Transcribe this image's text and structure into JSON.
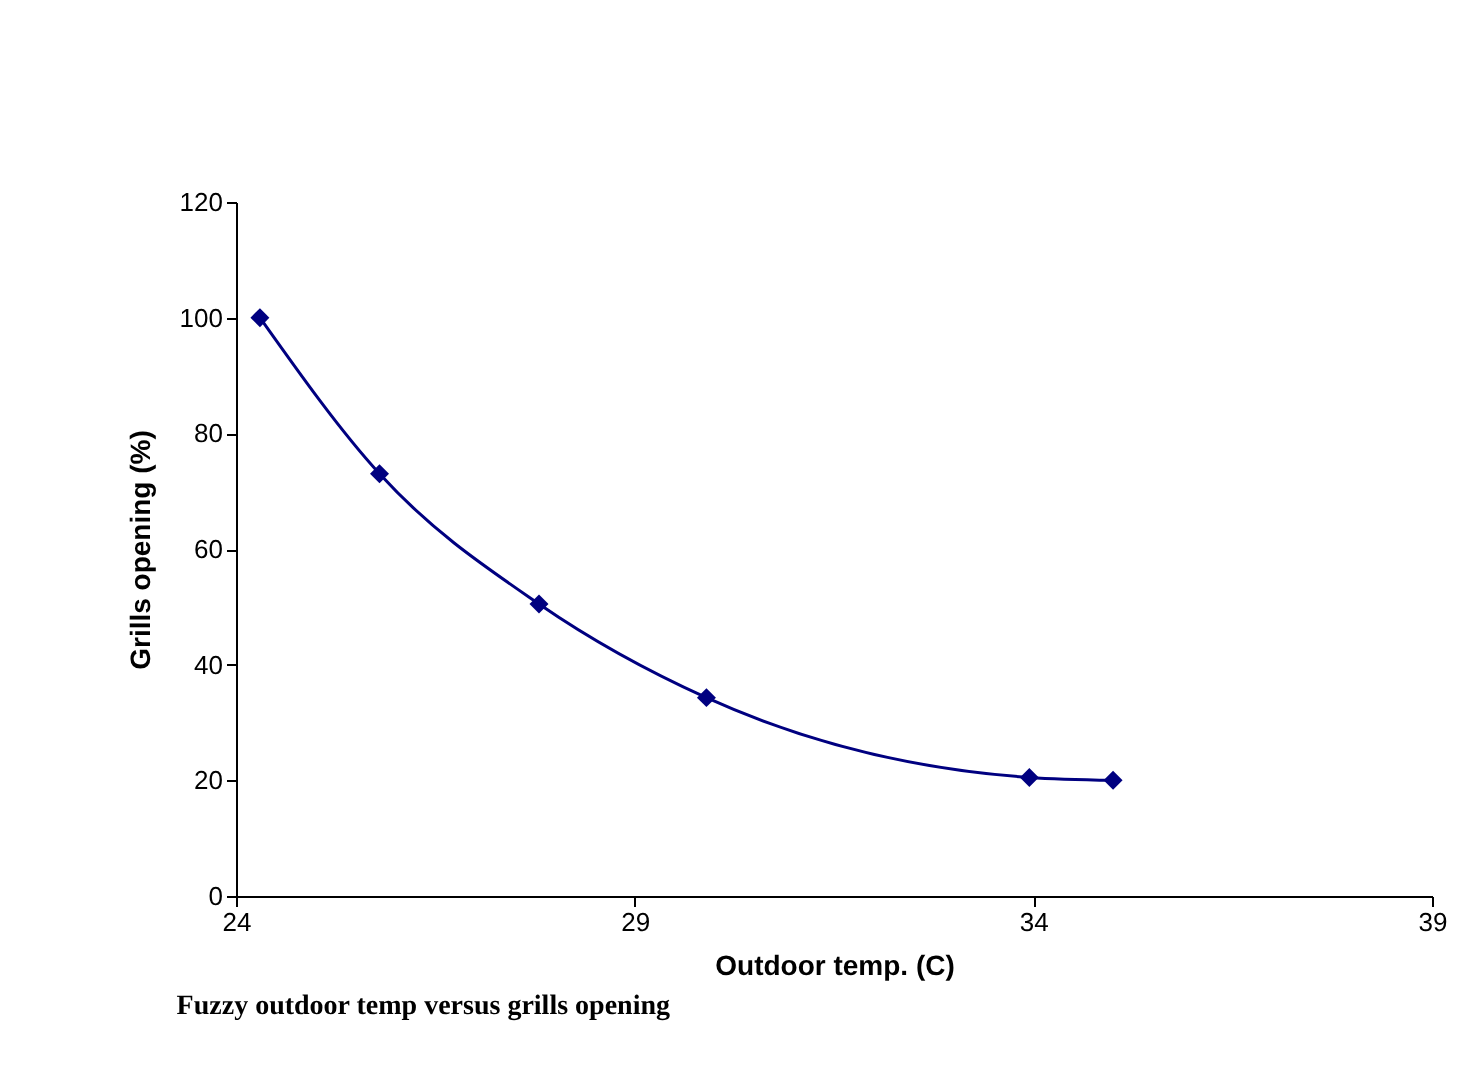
{
  "chart_data": {
    "type": "line",
    "title": "Fuzzy outdoor temp versus grills opening",
    "xlabel": "Outdoor temp. (C)",
    "ylabel": "Grills opening (%)",
    "x": [
      24.3,
      25.8,
      27.8,
      29.9,
      33.95,
      35.0
    ],
    "series": [
      {
        "color": "#000080",
        "values": [
          100,
          73,
          50.5,
          34.3,
          20.5,
          20
        ]
      }
    ],
    "xlim": [
      24,
      39
    ],
    "xticks": [
      24,
      29,
      34,
      39
    ],
    "ylim": [
      0,
      120
    ],
    "yticks": [
      0,
      20,
      40,
      60,
      80,
      100,
      120
    ],
    "marker": "diamond",
    "line_style": "solid",
    "grid": false,
    "legend": false
  }
}
